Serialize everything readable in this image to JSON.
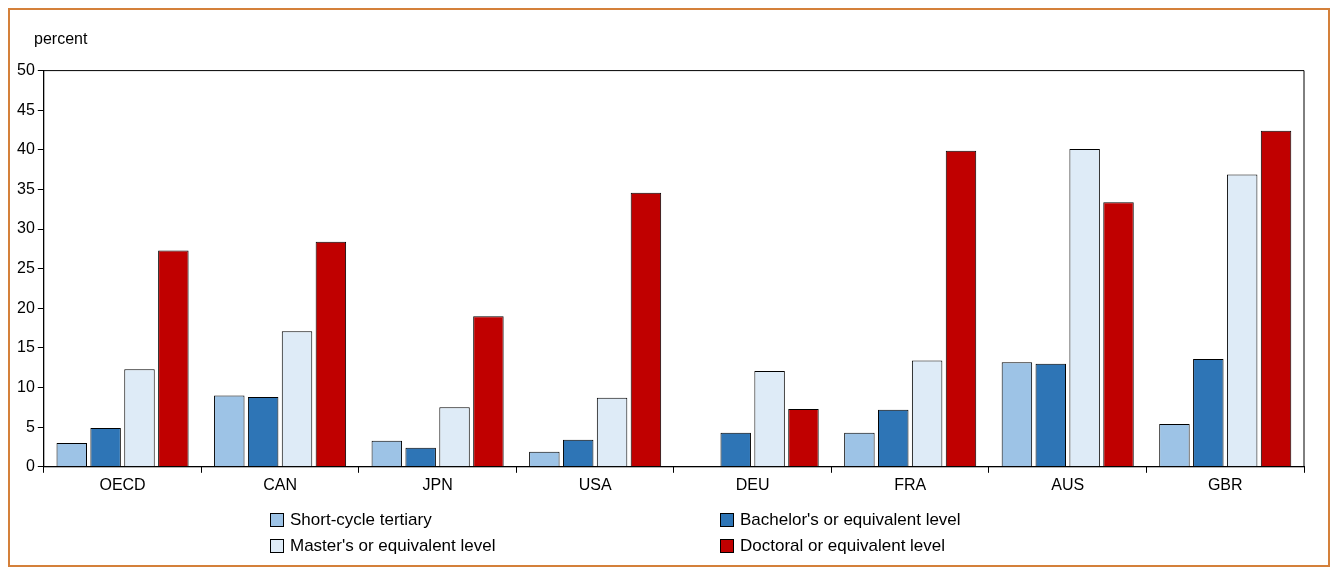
{
  "chart_data": {
    "type": "bar",
    "ylabel": "percent",
    "categories": [
      "OECD",
      "CAN",
      "JPN",
      "USA",
      "DEU",
      "FRA",
      "AUS",
      "GBR"
    ],
    "series": [
      {
        "name": "Short-cycle tertiary",
        "color": "#9dc3e6",
        "values": [
          3.0,
          9.0,
          3.3,
          1.9,
          null,
          4.3,
          13.2,
          5.4
        ]
      },
      {
        "name": "Bachelor's or equivalent level",
        "color": "#2e75b6",
        "values": [
          4.9,
          8.8,
          2.4,
          3.4,
          4.3,
          7.2,
          13.0,
          13.6
        ]
      },
      {
        "name": "Master's or equivalent level",
        "color": "#deebf7",
        "values": [
          12.3,
          17.1,
          7.5,
          8.7,
          12.1,
          13.4,
          40.1,
          36.9
        ]
      },
      {
        "name": "Doctoral or equivalent level",
        "color": "#c00000",
        "values": [
          27.3,
          28.4,
          19.0,
          34.6,
          7.3,
          39.9,
          33.4,
          42.4
        ]
      }
    ],
    "ylim": [
      0,
      50
    ],
    "yticks": [
      0,
      5,
      10,
      15,
      20,
      25,
      30,
      35,
      40,
      45,
      50
    ],
    "grid": false,
    "legend": "bottom"
  }
}
